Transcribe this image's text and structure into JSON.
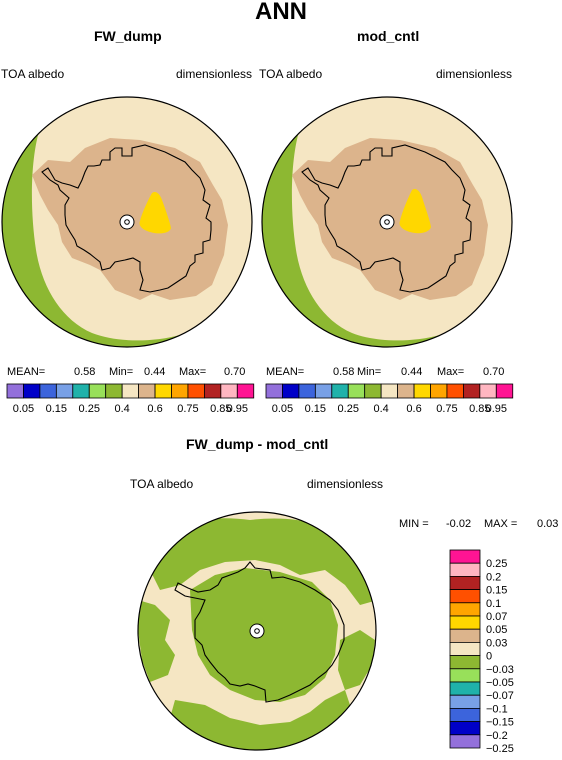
{
  "main_title": "ANN",
  "panels": [
    {
      "title": "FW_dump",
      "variable": "TOA albedo",
      "units": "dimensionless",
      "stats": {
        "mean_label": "MEAN=",
        "mean": "0.58",
        "min_label": "Min=",
        "min": "0.44",
        "max_label": "Max=",
        "max": "0.70"
      }
    },
    {
      "title": "mod_cntl",
      "variable": "TOA albedo",
      "units": "dimensionless",
      "stats": {
        "mean_label": "MEAN=",
        "mean": "0.58",
        "min_label": "Min=",
        "min": "0.44",
        "max_label": "Max=",
        "max": "0.70"
      }
    }
  ],
  "diff_panel": {
    "title": "FW_dump - mod_cntl",
    "variable": "TOA albedo",
    "units": "dimensionless",
    "min_label": "MIN =",
    "min": "-0.02",
    "max_label": "MAX =",
    "max": "0.03"
  },
  "chart_data": [
    {
      "type": "heatmap",
      "name": "FW_dump",
      "colorbar": {
        "colors": [
          "#9370DB",
          "#0000C8",
          "#3C64DC",
          "#78A0E6",
          "#20B2AA",
          "#98E05A",
          "#8DB832",
          "#F5E6C3",
          "#DCB48C",
          "#FFD700",
          "#FFA500",
          "#FF5000",
          "#B22222",
          "#FFB6C1",
          "#FF1493"
        ],
        "labels": [
          "0.05",
          "0.15",
          "0.25",
          "0.4",
          "0.6",
          "0.75",
          "0.85",
          "0.95"
        ]
      },
      "stats": {
        "mean": 0.58,
        "min": 0.44,
        "max": 0.7
      }
    },
    {
      "type": "heatmap",
      "name": "mod_cntl",
      "colorbar": {
        "colors": [
          "#9370DB",
          "#0000C8",
          "#3C64DC",
          "#78A0E6",
          "#20B2AA",
          "#98E05A",
          "#8DB832",
          "#F5E6C3",
          "#DCB48C",
          "#FFD700",
          "#FFA500",
          "#FF5000",
          "#B22222",
          "#FFB6C1",
          "#FF1493"
        ],
        "labels": [
          "0.05",
          "0.15",
          "0.25",
          "0.4",
          "0.6",
          "0.75",
          "0.85",
          "0.95"
        ]
      },
      "stats": {
        "mean": 0.58,
        "min": 0.44,
        "max": 0.7
      }
    },
    {
      "type": "heatmap",
      "name": "FW_dump - mod_cntl",
      "colorbar": {
        "colors": [
          "#FF1493",
          "#FFB6C1",
          "#B22222",
          "#FF5000",
          "#FFA500",
          "#FFD700",
          "#DCB48C",
          "#F5E6C3",
          "#8DB832",
          "#98E05A",
          "#20B2AA",
          "#78A0E6",
          "#3C64DC",
          "#0000C8",
          "#9370DB"
        ],
        "labels": [
          "0.25",
          "0.2",
          "0.15",
          "0.1",
          "0.07",
          "0.05",
          "0.03",
          "0",
          "−0.03",
          "−0.05",
          "−0.07",
          "−0.1",
          "−0.15",
          "−0.2",
          "−0.25"
        ]
      },
      "stats": {
        "min": -0.02,
        "max": 0.03
      }
    }
  ]
}
